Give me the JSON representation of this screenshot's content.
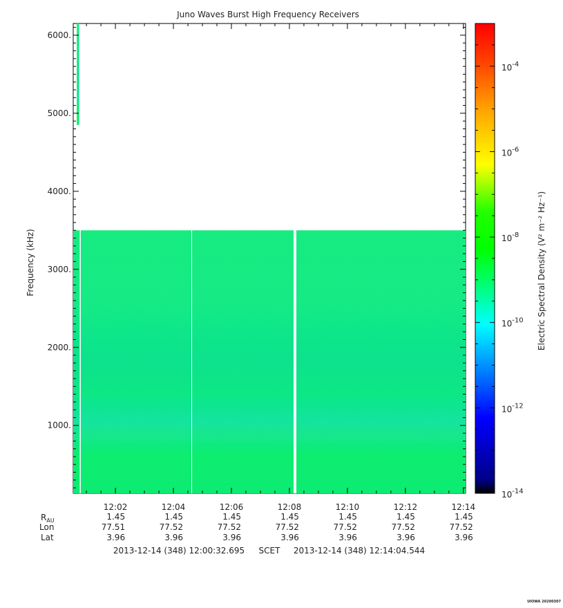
{
  "chart_data": {
    "type": "heatmap",
    "title": "Juno Waves Burst High Frequency Receivers",
    "ylabel": "Frequency (kHz)",
    "ylim": [
      130,
      6150
    ],
    "y_ticks": [
      1000,
      2000,
      3000,
      4000,
      5000,
      6000
    ],
    "y_tick_labels": [
      "1000.",
      "2000.",
      "3000.",
      "4000.",
      "5000.",
      "6000."
    ],
    "x_time_range": [
      "12:00:32.695",
      "12:14:04.544"
    ],
    "x_ticks": [
      "12:02",
      "12:04",
      "12:06",
      "12:08",
      "12:10",
      "12:12",
      "12:14"
    ],
    "colorbar": {
      "label": "Electric Spectral Density (V² m⁻² Hz⁻¹)",
      "range_log10": [
        -14,
        -3
      ],
      "ticks": [
        {
          "base": "10",
          "exp": "-4",
          "log": -4
        },
        {
          "base": "10",
          "exp": "-6",
          "log": -6
        },
        {
          "base": "10",
          "exp": "-8",
          "log": -8
        },
        {
          "base": "10",
          "exp": "-10",
          "log": -10
        },
        {
          "base": "10",
          "exp": "-12",
          "log": -12
        },
        {
          "base": "10",
          "exp": "-14",
          "log": -14
        }
      ],
      "colors": [
        "#000080",
        "#0000ff",
        "#00ffff",
        "#00ff00",
        "#ffff00",
        "#ff8000",
        "#ff0000"
      ]
    },
    "data_regions": [
      {
        "time_start": "12:00:32.695",
        "time_end": "12:14:04.544",
        "freq_start": 130,
        "freq_end": 3500,
        "log10_density": -9.5
      },
      {
        "time_start": "12:00:40",
        "time_end": "12:00:45",
        "freq_start": 4850,
        "freq_end": 6150,
        "log10_density": -9.5
      }
    ],
    "ephemeris": {
      "row_labels": {
        "r_main": "R",
        "r_sub": "AU",
        "lon": "Lon",
        "lat": "Lat"
      },
      "columns": [
        {
          "time": "12:02",
          "r": "1.45",
          "lon": "77.51",
          "lat": "3.96"
        },
        {
          "time": "12:04",
          "r": "1.45",
          "lon": "77.52",
          "lat": "3.96"
        },
        {
          "time": "12:06",
          "r": "1.45",
          "lon": "77.52",
          "lat": "3.96"
        },
        {
          "time": "12:08",
          "r": "1.45",
          "lon": "77.52",
          "lat": "3.96"
        },
        {
          "time": "12:10",
          "r": "1.45",
          "lon": "77.52",
          "lat": "3.96"
        },
        {
          "time": "12:12",
          "r": "1.45",
          "lon": "77.52",
          "lat": "3.96"
        },
        {
          "time": "12:14",
          "r": "1.45",
          "lon": "77.52",
          "lat": "3.96"
        }
      ]
    },
    "time_range_text": {
      "start": "2013-12-14 (348) 12:00:32.695",
      "mid": "SCET",
      "end": "2013-12-14 (348) 12:14:04.544"
    },
    "watermark": "UIOWA 20200307"
  }
}
